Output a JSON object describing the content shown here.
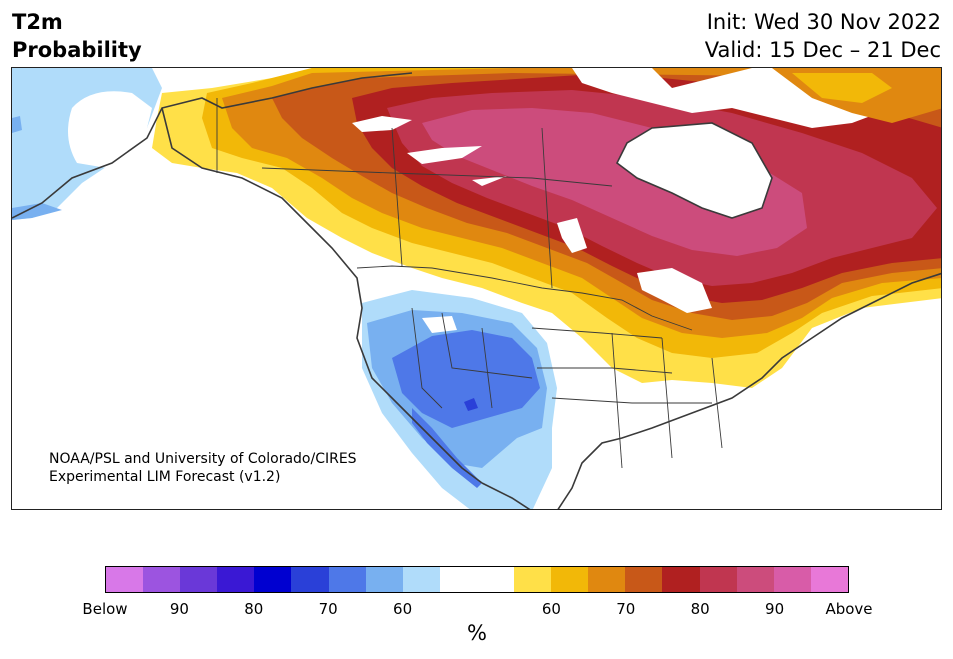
{
  "title": {
    "line1": "T2m",
    "line2": "Probability",
    "init": "Init: Wed 30 Nov 2022",
    "valid": "Valid: 15 Dec – 21 Dec"
  },
  "credit": {
    "line1": "NOAA/PSL and University of Colorado/CIRES",
    "line2": "Experimental LIM Forecast (v1.2)"
  },
  "legend": {
    "unit": "%",
    "colors": [
      "#d878e8",
      "#9c54e0",
      "#6a38d8",
      "#3a18d4",
      "#0000d0",
      "#2a40d8",
      "#4e78e8",
      "#78b0f0",
      "#b0dcfa",
      "#ffffff",
      "#ffffff",
      "#ffe048",
      "#f2b808",
      "#e08810",
      "#c85818",
      "#b02020",
      "#c03650",
      "#cc4c7c",
      "#d85ca8",
      "#e878d8"
    ],
    "ticks": [
      {
        "label": "Below",
        "pos": 0
      },
      {
        "label": "90",
        "pos": 2
      },
      {
        "label": "80",
        "pos": 4
      },
      {
        "label": "70",
        "pos": 6
      },
      {
        "label": "60",
        "pos": 8
      },
      {
        "label": "60",
        "pos": 12
      },
      {
        "label": "70",
        "pos": 14
      },
      {
        "label": "80",
        "pos": 16
      },
      {
        "label": "90",
        "pos": 18
      },
      {
        "label": "Above",
        "pos": 20
      }
    ]
  }
}
